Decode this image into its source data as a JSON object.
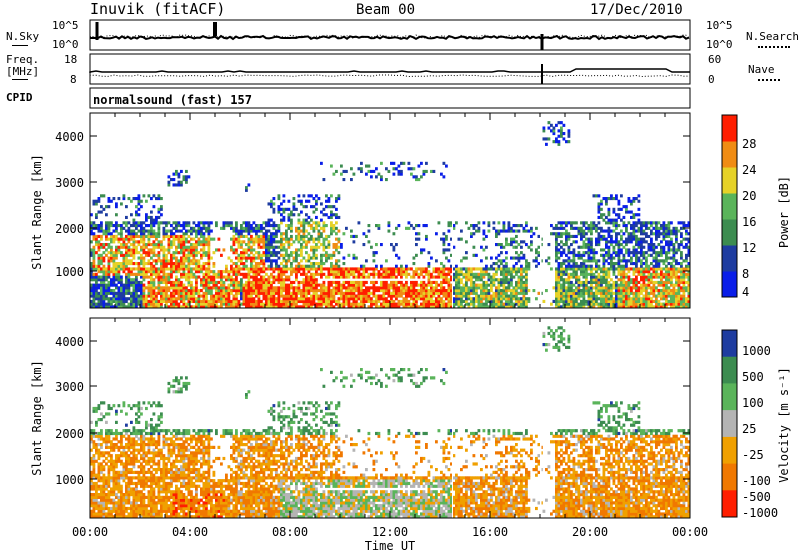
{
  "header": {
    "station": "Inuvik (fitACF)",
    "beam": "Beam 00",
    "date": "17/Dec/2010"
  },
  "sky_panel": {
    "left_label": "N.Sky",
    "right_label": "N.Search",
    "ticks_left": [
      "10^5",
      "10^0"
    ],
    "ticks_right": [
      "10^5",
      "10^0"
    ]
  },
  "freq_panel": {
    "label_line1": "Freq.",
    "label_line2": "[MHz]",
    "ticks_left": [
      "18",
      "8"
    ],
    "right_label": "Nave",
    "ticks_right": [
      "60",
      "0"
    ]
  },
  "cpid_panel": {
    "label": "CPID",
    "mode": "normalsound (fast) 157"
  },
  "power_panel": {
    "ylabel": "Slant Range [km]",
    "yticks": [
      "4000",
      "3000",
      "2000",
      "1000"
    ],
    "colorbar_label": "Power [dB]",
    "colorbar_ticks": [
      "28",
      "24",
      "20",
      "16",
      "12",
      "8",
      "4"
    ],
    "colors": [
      "#0a1ee8",
      "#1e3ca0",
      "#3c8c50",
      "#5ab45a",
      "#e6d228",
      "#f08c14",
      "#ff1e00"
    ]
  },
  "velocity_panel": {
    "ylabel": "Slant Range [km]",
    "yticks": [
      "4000",
      "3000",
      "2000",
      "1000"
    ],
    "colorbar_label": "Velocity [m s⁻¹]",
    "colorbar_ticks": [
      "1000",
      "500",
      "100",
      "25",
      "-25",
      "-100",
      "-500",
      "-1000"
    ],
    "colors": [
      "#1e3ca0",
      "#3c8c50",
      "#5ab45a",
      "#b4b4b4",
      "#f0a000",
      "#f07800",
      "#ff1e00"
    ]
  },
  "x_axis": {
    "label": "Time UT",
    "ticks": [
      "00:00",
      "04:00",
      "08:00",
      "12:00",
      "16:00",
      "20:00",
      "00:00"
    ]
  },
  "chart_data": [
    {
      "type": "heatmap",
      "title": "Power",
      "ylabel": "Slant Range [km]",
      "xlabel": "Time UT",
      "ylim": [
        180,
        4500
      ],
      "xlim": [
        0,
        24
      ],
      "colorbar": {
        "label": "Power [dB]",
        "ticks": [
          4,
          8,
          12,
          16,
          20,
          24,
          28
        ]
      }
    },
    {
      "type": "heatmap",
      "title": "Velocity",
      "ylabel": "Slant Range [km]",
      "xlabel": "Time UT",
      "ylim": [
        180,
        4500
      ],
      "xlim": [
        0,
        24
      ],
      "colorbar": {
        "label": "Velocity [m s⁻¹]",
        "ticks": [
          1000,
          500,
          100,
          25,
          -25,
          -100,
          -500,
          -1000
        ]
      }
    }
  ]
}
